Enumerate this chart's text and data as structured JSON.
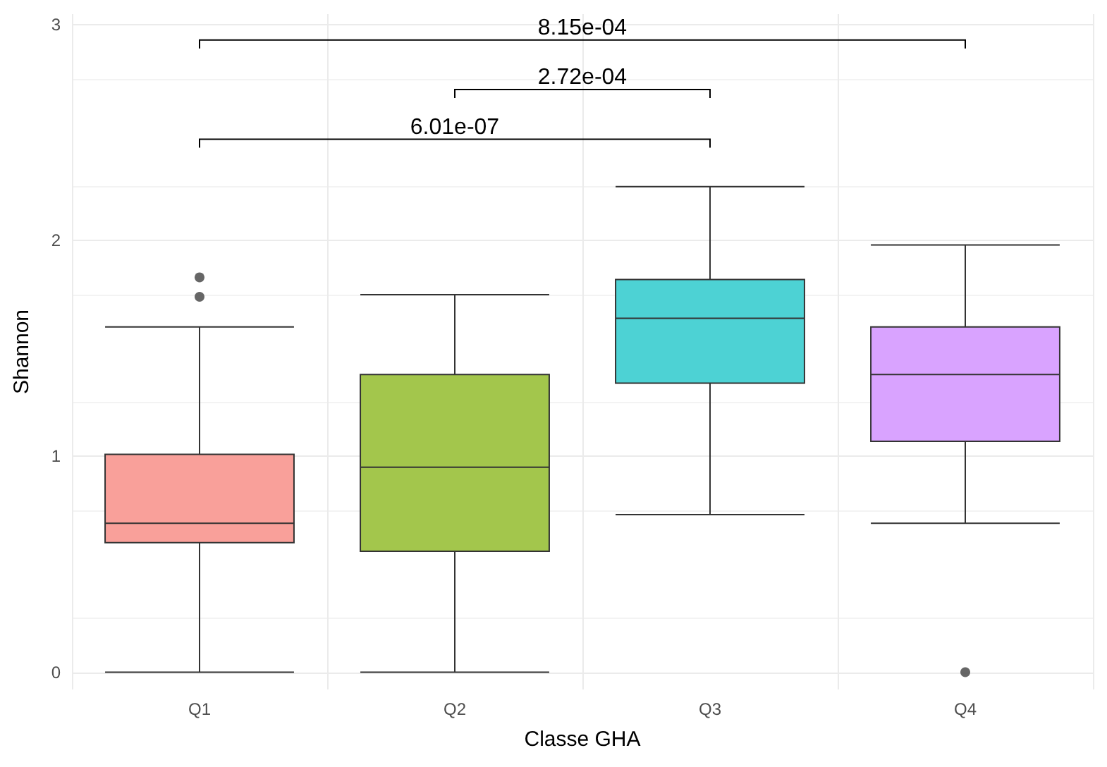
{
  "chart_data": {
    "type": "box",
    "xlabel": "Classe GHA",
    "ylabel": "Shannon",
    "categories": [
      "Q1",
      "Q2",
      "Q3",
      "Q4"
    ],
    "colors": [
      "#f9a09a",
      "#a3c64c",
      "#4dd2d4",
      "#d9a3ff"
    ],
    "boxes": [
      {
        "low": 0,
        "q1": 0.6,
        "median": 0.69,
        "q3": 1.01,
        "high": 1.6,
        "outliers": [
          1.83,
          1.74
        ]
      },
      {
        "low": 0,
        "q1": 0.56,
        "median": 0.95,
        "q3": 1.38,
        "high": 1.75
      },
      {
        "low": 0.73,
        "q1": 1.34,
        "median": 1.64,
        "q3": 1.82,
        "high": 2.25
      },
      {
        "low": 0.69,
        "q1": 1.07,
        "median": 1.38,
        "q3": 1.6,
        "high": 1.98,
        "outliers": [
          0
        ]
      }
    ],
    "ylim": [
      -0.08,
      3.05
    ],
    "yticks": [
      0,
      1,
      2,
      3
    ],
    "grid": true,
    "annotations": [
      "8.15e-04",
      "2.72e-04",
      "6.01e-07"
    ]
  }
}
